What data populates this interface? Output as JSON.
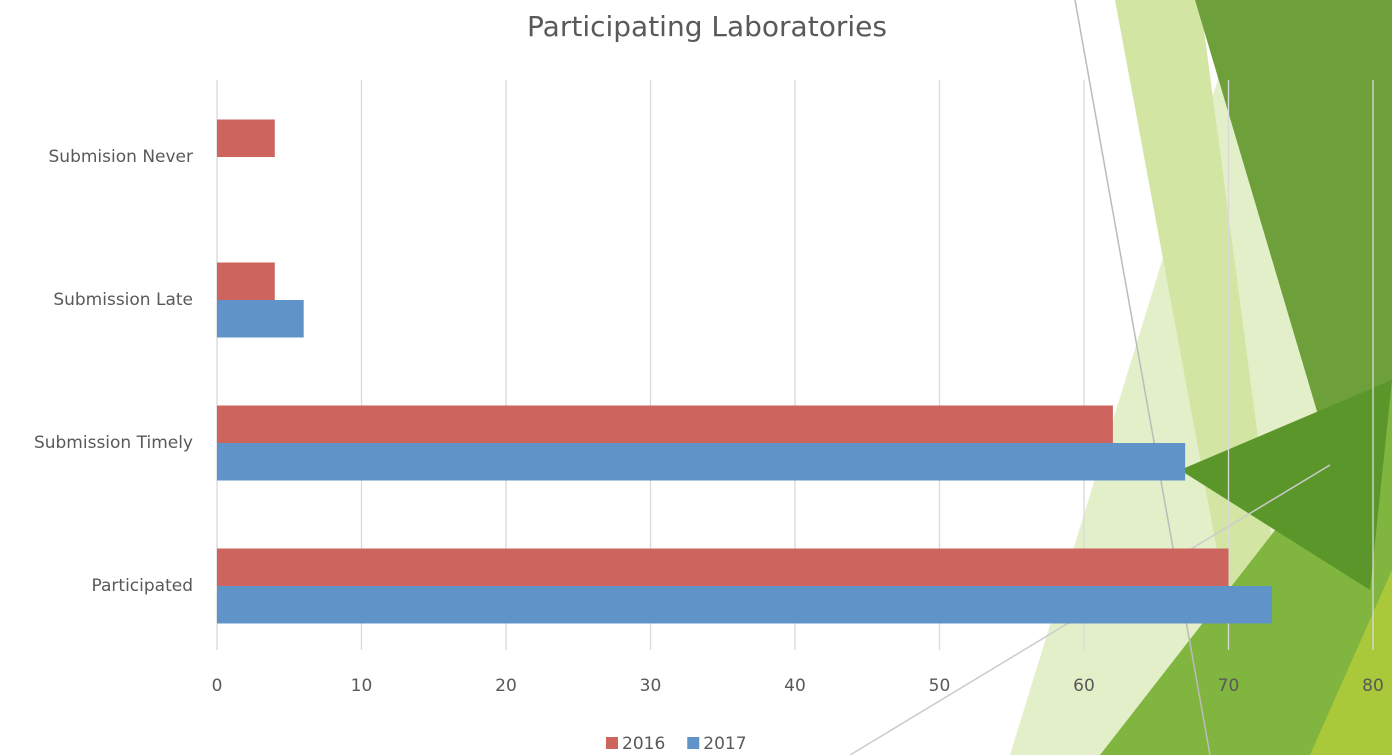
{
  "chart_data": {
    "type": "hbar",
    "title": "Participating Laboratories",
    "categories": [
      "Submision Never",
      "Submission Late",
      "Submission Timely",
      "Participated"
    ],
    "series": [
      {
        "name": "2016",
        "color": "#cd655e",
        "values": [
          4,
          4,
          62,
          70
        ]
      },
      {
        "name": "2017",
        "color": "#6094c8",
        "values": [
          null,
          6,
          67,
          73
        ]
      }
    ],
    "xlim": [
      0,
      80
    ],
    "xticks": [
      0,
      10,
      20,
      30,
      40,
      50,
      60,
      70,
      80
    ],
    "grid": true
  }
}
